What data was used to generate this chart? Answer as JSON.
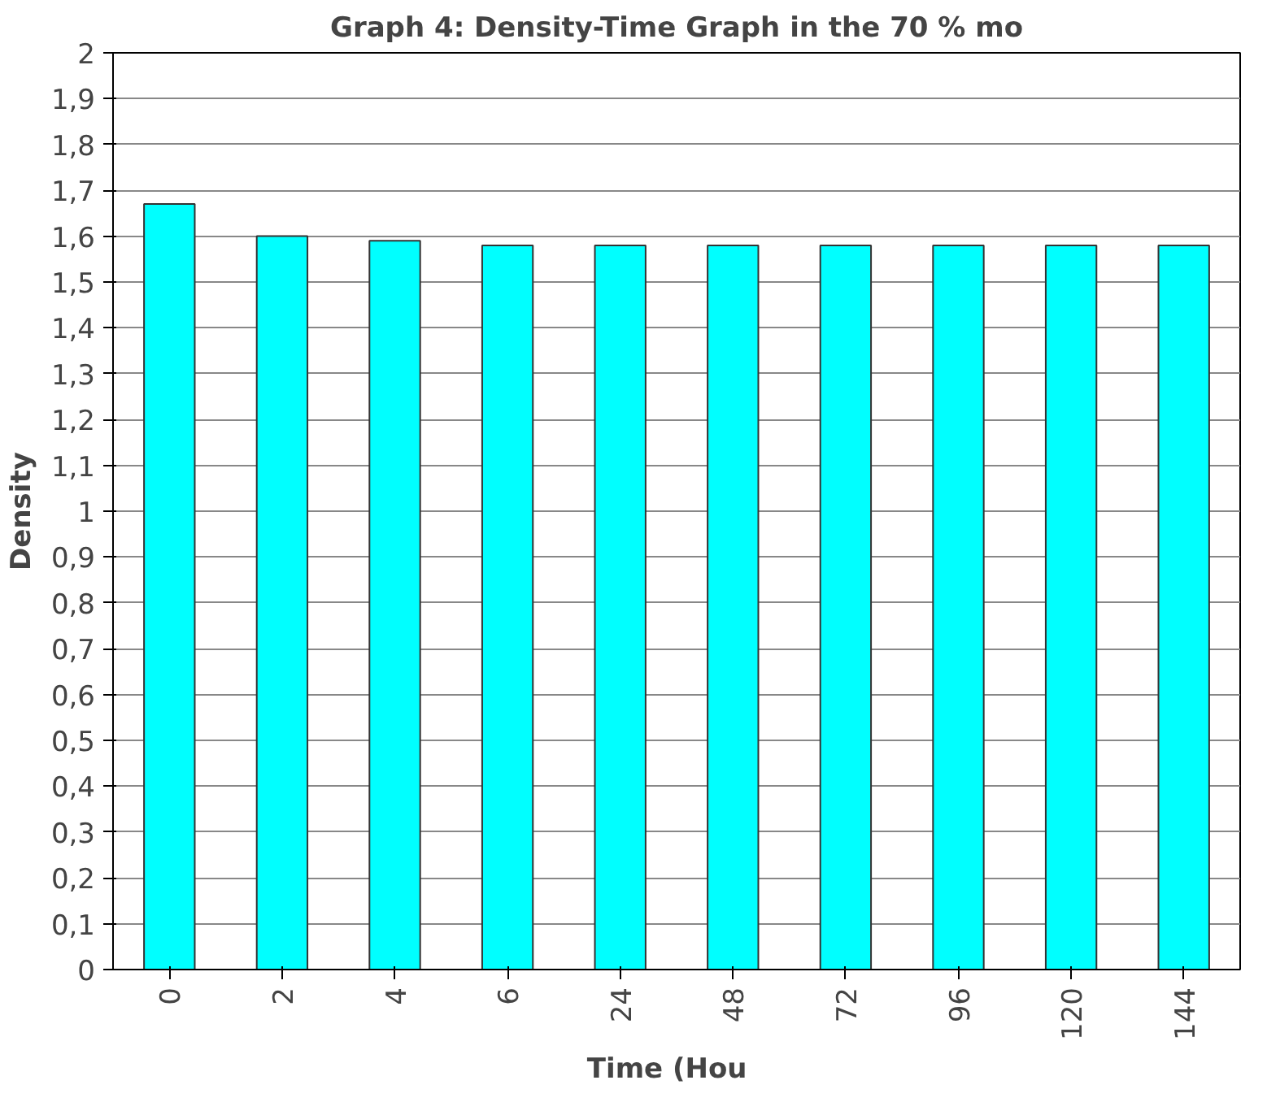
{
  "chart_data": {
    "type": "bar",
    "title": "Graph 4: Density-Time Graph in the 70 % mo",
    "xlabel": "Time   (Hou",
    "ylabel": "Density",
    "categories": [
      "0",
      "2",
      "4",
      "6",
      "24",
      "48",
      "72",
      "96",
      "120",
      "144"
    ],
    "values": [
      1.67,
      1.6,
      1.59,
      1.58,
      1.58,
      1.58,
      1.58,
      1.58,
      1.58,
      1.58
    ],
    "color": "#00ffff",
    "ylim": [
      0,
      2
    ],
    "yticks": [
      0,
      {
        "value": 0.1,
        "label": "0,1"
      },
      {
        "value": 0.2,
        "label": "0,2"
      },
      {
        "value": 0.3,
        "label": "0,3"
      },
      {
        "value": 0.4,
        "label": "0,4"
      },
      {
        "value": 0.5,
        "label": "0,5"
      },
      {
        "value": 0.6,
        "label": "0,6"
      },
      {
        "value": 0.7,
        "label": "0,7"
      },
      {
        "value": 0.8,
        "label": "0,8"
      },
      {
        "value": 0.9,
        "label": "0,9"
      },
      1,
      {
        "value": 1.1,
        "label": "1,1"
      },
      {
        "value": 1.2,
        "label": "1,2"
      },
      {
        "value": 1.3,
        "label": "1,3"
      },
      {
        "value": 1.4,
        "label": "1,4"
      },
      {
        "value": 1.5,
        "label": "1,5"
      },
      {
        "value": 1.6,
        "label": "1,6"
      },
      {
        "value": 1.7,
        "label": "1,7"
      },
      {
        "value": 1.8,
        "label": "1,8"
      },
      {
        "value": 1.9,
        "label": "1,9"
      },
      2
    ],
    "grid": "y"
  }
}
